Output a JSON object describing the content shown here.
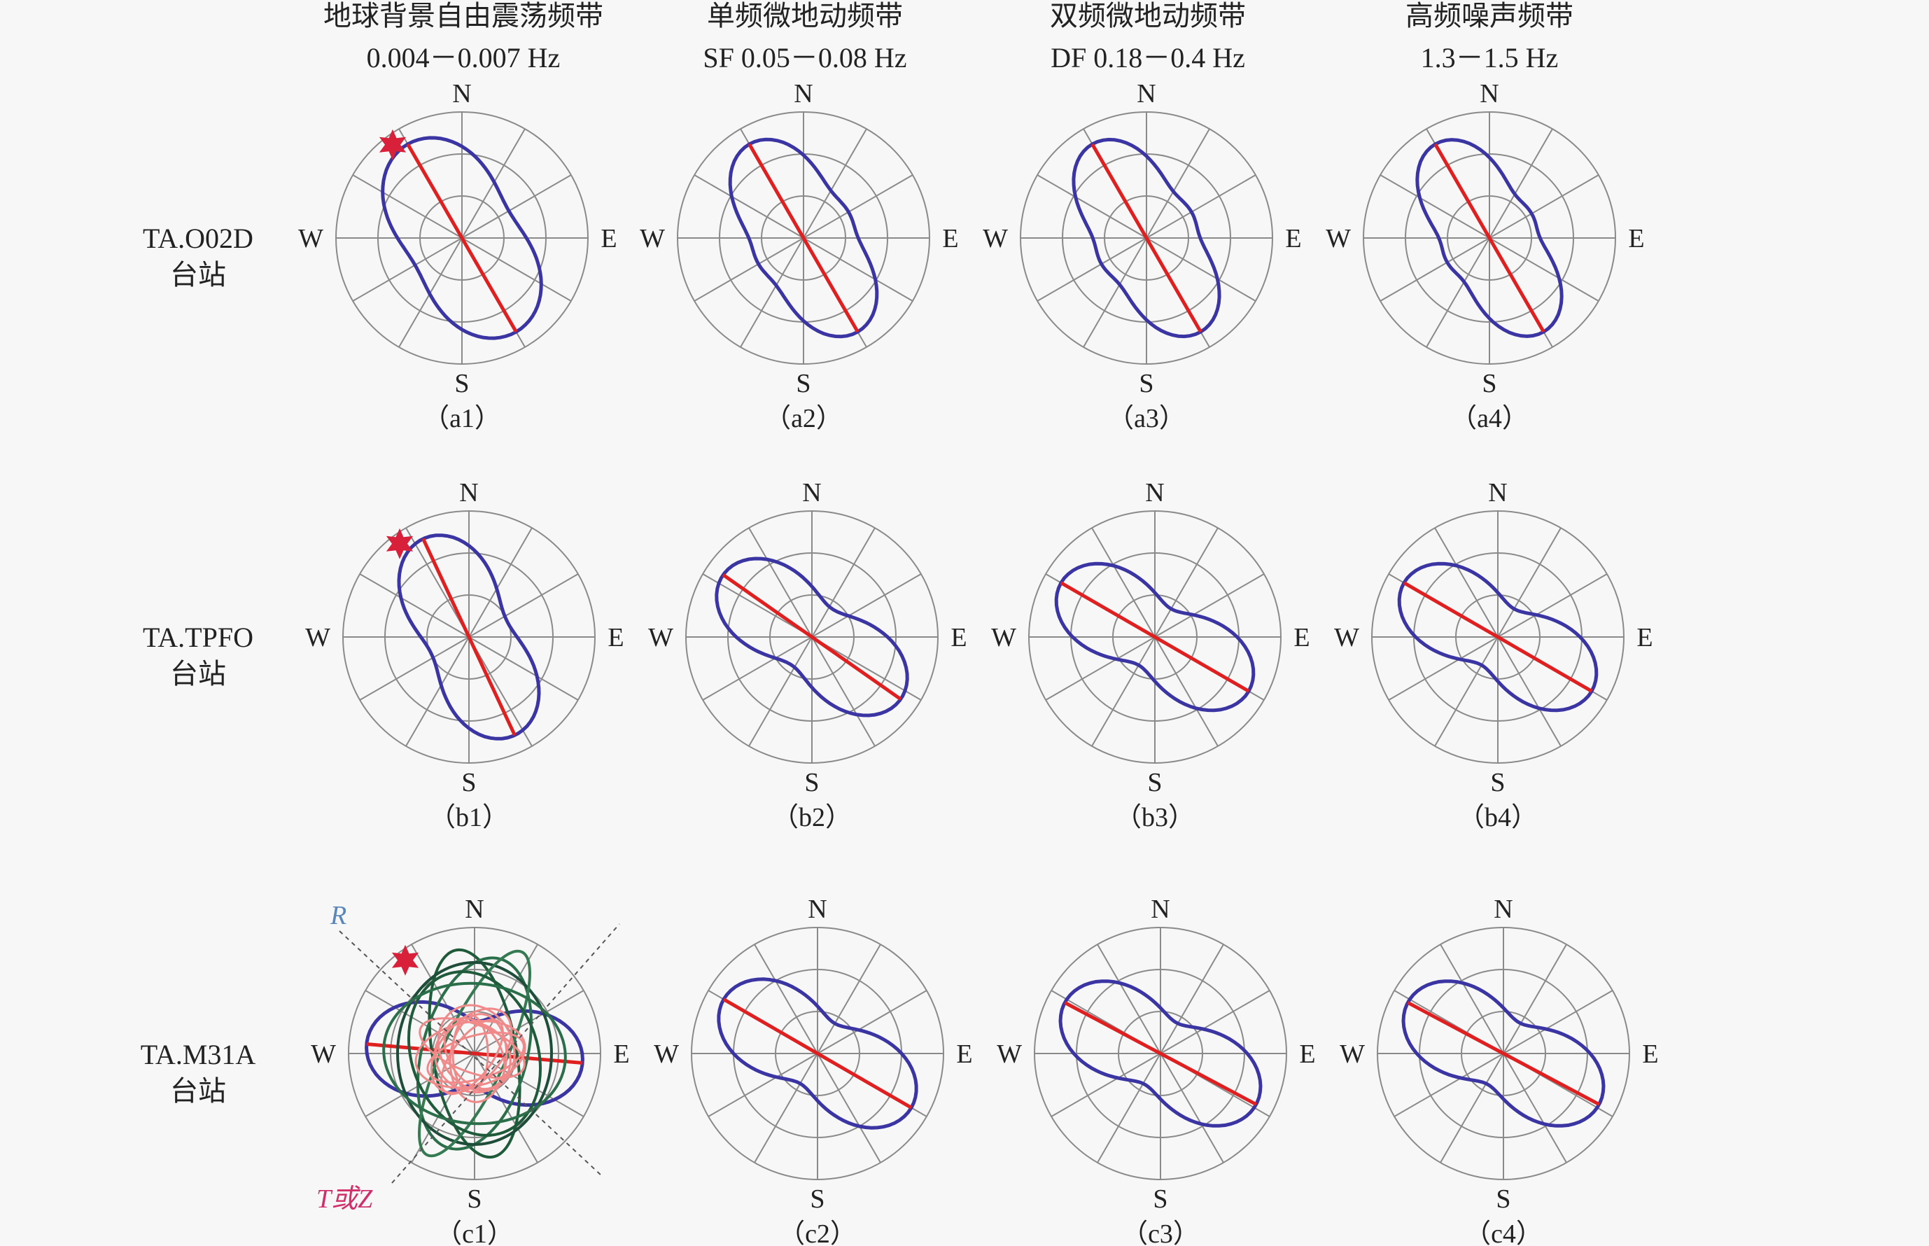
{
  "columns": [
    {
      "title": "地球背景自由震荡频带",
      "range": "0.004－0.007 Hz"
    },
    {
      "title": "单频微地动频带",
      "range": "SF 0.05－0.08 Hz"
    },
    {
      "title": "双频微地动频带",
      "range": "DF 0.18－0.4 Hz"
    },
    {
      "title": "高频噪声频带",
      "range": "1.3－1.5 Hz"
    }
  ],
  "stations": [
    {
      "name": "TA.O02D",
      "suffix": "台站"
    },
    {
      "name": "TA.TPFO",
      "suffix": "台站"
    },
    {
      "name": "TA.M31A",
      "suffix": "台站"
    }
  ],
  "directions": {
    "n": "N",
    "e": "E",
    "s": "S",
    "w": "W"
  },
  "panel_labels": [
    [
      "（a1）",
      "（a2）",
      "（a3）",
      "（a4）"
    ],
    [
      "（b1）",
      "（b2）",
      "（b3）",
      "（b4）"
    ],
    [
      "（c1）",
      "（c2）",
      "（c3）",
      "（c4）"
    ]
  ],
  "annotations": {
    "r_label": "R",
    "tz_label": "T或Z"
  },
  "colors": {
    "pattern": "#3a35a3",
    "axis": "#e02020",
    "ring": "#8a8a8a",
    "star": "#d8203a"
  },
  "icons": {
    "event_marker": "six-point-star-icon"
  }
}
